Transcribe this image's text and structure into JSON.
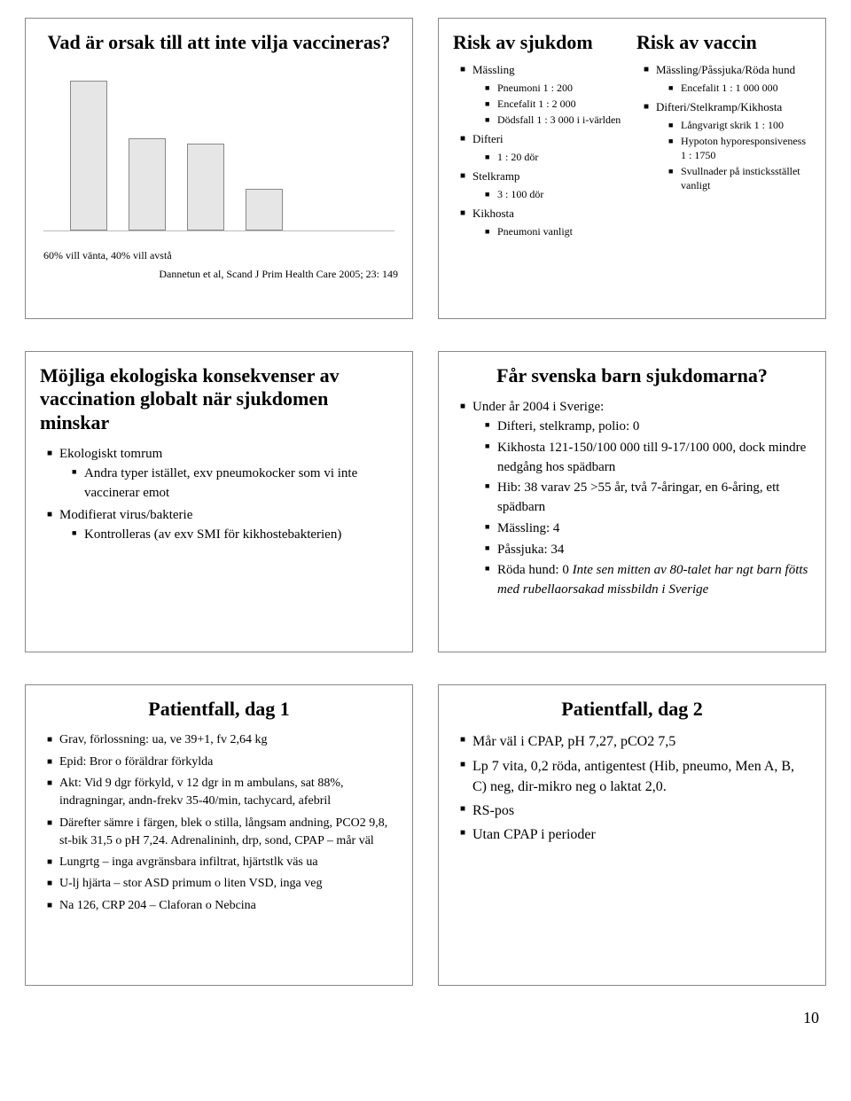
{
  "page_number": "10",
  "slide1": {
    "title": "Vad är orsak till att inte vilja vaccineras?",
    "caption": "60% vill vänta, 40% vill avstå",
    "citation": "Dannetun et al, Scand J Prim Health Care 2005; 23: 149",
    "chart": {
      "type": "bar",
      "values": [
        100,
        62,
        58,
        28
      ],
      "bar_color": "#e6e6e6",
      "bar_border": "#888888",
      "background": "#ffffff",
      "ylim": [
        0,
        100
      ]
    }
  },
  "slide2": {
    "col_left_title": "Risk av sjukdom",
    "col_right_title": "Risk av vaccin",
    "left": [
      {
        "t": "Mässling",
        "sub": [
          {
            "t": "Pneumoni 1 : 200"
          },
          {
            "t": "Encefalit 1 : 2 000"
          },
          {
            "t": "Dödsfall 1 : 3 000 i           i-världen"
          }
        ]
      },
      {
        "t": "Difteri",
        "sub": [
          {
            "t": "1 : 20 dör"
          }
        ]
      },
      {
        "t": "Stelkramp",
        "sub": [
          {
            "t": "3 : 100 dör"
          }
        ]
      },
      {
        "t": "Kikhosta",
        "sub": [
          {
            "t": "Pneumoni vanligt"
          }
        ]
      }
    ],
    "right": [
      {
        "t": "Mässling/Påssjuka/Röda hund",
        "sub": [
          {
            "t": "Encefalit 1 : 1 000 000"
          }
        ]
      },
      {
        "t": "Difteri/Stelkramp/Kikhosta",
        "sub": [
          {
            "t": "Långvarigt skrik 1 : 100"
          },
          {
            "t": "Hypoton hyporesponsiveness 1 : 1750"
          },
          {
            "t": "Svullnader på insticksstället vanligt"
          }
        ]
      }
    ]
  },
  "slide3": {
    "title": "Möjliga ekologiska konsekvenser av vaccination globalt när sjukdomen minskar",
    "items": [
      {
        "t": "Ekologiskt tomrum",
        "sub": [
          {
            "t": "Andra typer istället, exv pneumokocker som vi inte vaccinerar emot"
          }
        ]
      },
      {
        "t": "Modifierat virus/bakterie",
        "sub": [
          {
            "t": "Kontrolleras (av exv SMI för kikhostebakterien)"
          }
        ]
      }
    ]
  },
  "slide4": {
    "title": "Får svenska barn sjukdomarna?",
    "items": [
      {
        "t": "Under år 2004 i Sverige:",
        "sub": [
          {
            "t": "Difteri, stelkramp, polio: 0"
          },
          {
            "t": "Kikhosta 121-150/100 000 till 9-17/100 000, dock mindre nedgång hos spädbarn"
          },
          {
            "t": "Hib: 38 varav 25 >55 år, två 7-åringar, en 6-åring, ett spädbarn"
          },
          {
            "t": "Mässling: 4"
          },
          {
            "t": "Påssjuka: 34"
          },
          {
            "t": "Röda hund: 0  ",
            "tail_italic": "Inte sen mitten av 80-talet har ngt barn fötts med rubellaorsakad missbildn i Sverige"
          }
        ]
      }
    ]
  },
  "slide5": {
    "title": "Patientfall, dag 1",
    "items": [
      {
        "t": "Grav, förlossning: ua, ve 39+1, fv 2,64 kg"
      },
      {
        "t": "Epid: Bror o föräldrar förkylda"
      },
      {
        "t": "Akt: Vid 9 dgr förkyld, v 12 dgr in m ambulans, sat 88%, indragningar, andn-frekv 35-40/min, tachycard, afebril"
      },
      {
        "t": "Därefter sämre i färgen, blek o stilla, långsam andning, PCO2 9,8, st-bik 31,5 o pH 7,24. Adrenalininh, drp, sond, CPAP – mår väl"
      },
      {
        "t": "Lungrtg – inga avgränsbara infiltrat, hjärtstlk väs ua"
      },
      {
        "t": "U-lj hjärta – stor ASD primum o liten VSD, inga veg"
      },
      {
        "t": "Na 126, CRP 204 – Claforan o Nebcina"
      }
    ]
  },
  "slide6": {
    "title": "Patientfall, dag 2",
    "items": [
      {
        "t": "Mår väl i CPAP, pH 7,27, pCO2 7,5"
      },
      {
        "t": "Lp 7 vita, 0,2 röda, antigentest (Hib, pneumo, Men A, B, C) neg, dir-mikro neg o laktat 2,0."
      },
      {
        "t": "RS-pos"
      },
      {
        "t": "Utan CPAP i perioder"
      }
    ]
  }
}
